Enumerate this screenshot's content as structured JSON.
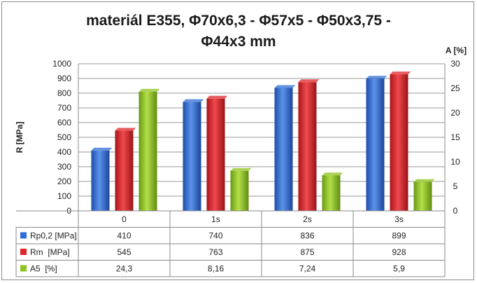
{
  "chart_data": {
    "type": "bar",
    "title_line1": "materiál E355, Φ70x6,3 - Φ57x5 - Φ50x3,75 -",
    "title_line2": "Φ44x3 mm",
    "categories": [
      "0",
      "1s",
      "2s",
      "3s"
    ],
    "ylabel": "R [MPa]",
    "y2label": "A [%]",
    "ylim": [
      0,
      1000
    ],
    "y2lim": [
      0,
      30
    ],
    "yticks": [
      "0",
      "100",
      "200",
      "300",
      "400",
      "500",
      "600",
      "700",
      "800",
      "900",
      "1000"
    ],
    "y2ticks": [
      "0",
      "5",
      "10",
      "15",
      "20",
      "25",
      "30"
    ],
    "grid": true,
    "legend_placement": "table-left",
    "series": [
      {
        "name": "Rp0,2 [MPa]",
        "axis": "left",
        "color": "#2f6fd6",
        "values": [
          410,
          740,
          836,
          899
        ],
        "labels": [
          "410",
          "740",
          "836",
          "899"
        ]
      },
      {
        "name": "Rm  [MPa]",
        "axis": "left",
        "color": "#e0262b",
        "values": [
          545,
          763,
          875,
          928
        ],
        "labels": [
          "545",
          "763",
          "875",
          "928"
        ]
      },
      {
        "name": "A5  [%]",
        "axis": "right",
        "color": "#8fc31f",
        "values": [
          24.3,
          8.16,
          7.24,
          5.9
        ],
        "labels": [
          "24,3",
          "8,16",
          "7,24",
          "5,9"
        ]
      }
    ]
  }
}
